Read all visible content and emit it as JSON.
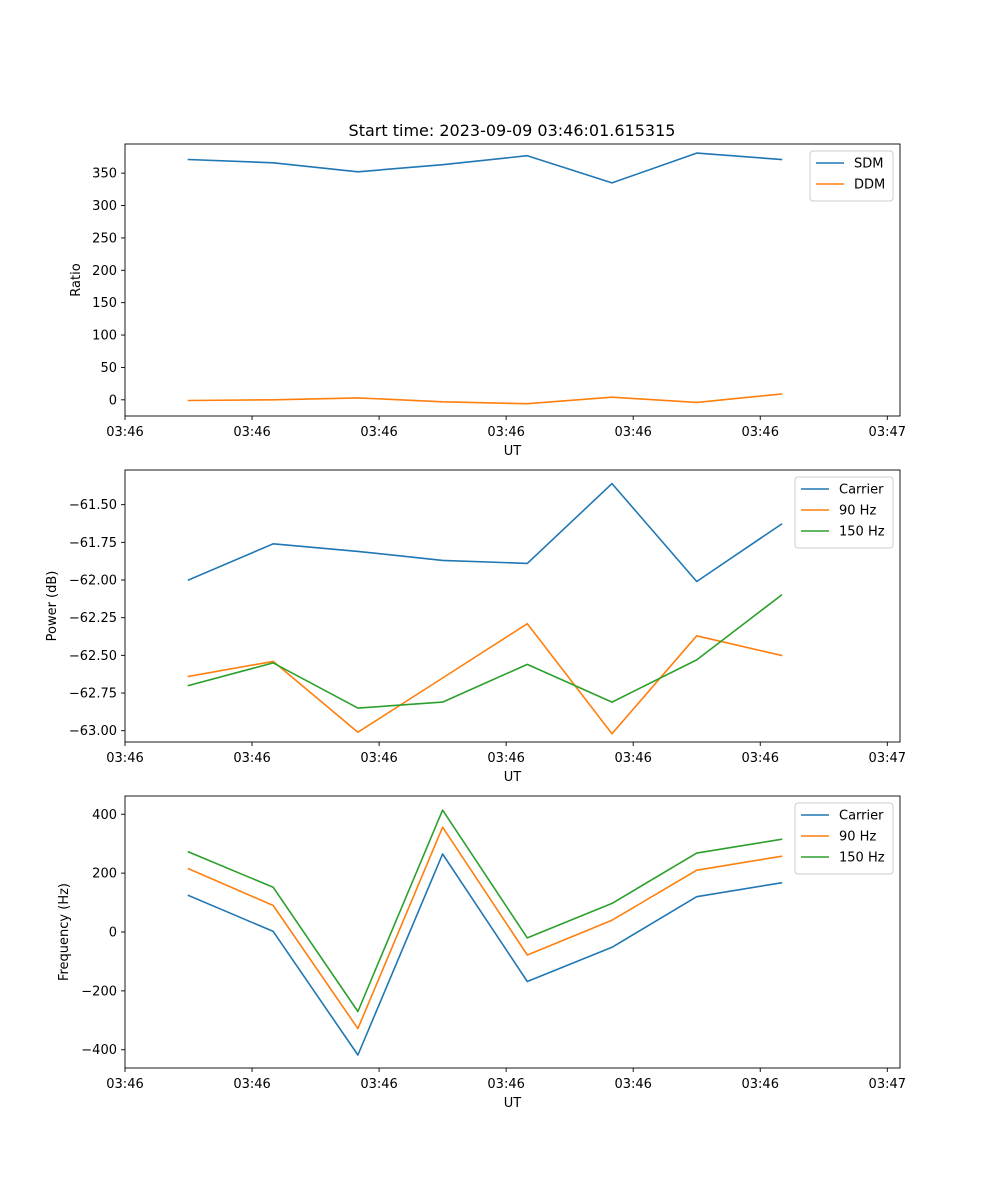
{
  "figure": {
    "title": "Start time: 2023-09-09 03:46:01.615315"
  },
  "chart_data": [
    {
      "type": "line",
      "title": "Start time: 2023-09-09 03:46:01.615315",
      "xlabel": "UT",
      "ylabel": "Ratio",
      "x": [
        0,
        1,
        2,
        3,
        4,
        5,
        6,
        7
      ],
      "xlim": [
        -0.75,
        8.4
      ],
      "xtick_positions": [
        -0.75,
        0.75,
        2.25,
        3.75,
        5.25,
        6.75,
        8.25
      ],
      "xtick_labels": [
        "03:46",
        "03:46",
        "03:46",
        "03:46",
        "03:46",
        "03:46",
        "03:47"
      ],
      "ylim": [
        -25,
        395
      ],
      "yticks": [
        0,
        50,
        100,
        150,
        200,
        250,
        300,
        350
      ],
      "legend": "top-right",
      "series": [
        {
          "name": "SDM",
          "color": "#1f77b4",
          "values": [
            371,
            366,
            352,
            363,
            377,
            335,
            381,
            371
          ]
        },
        {
          "name": "DDM",
          "color": "#ff7f0e",
          "values": [
            -1,
            0,
            3,
            -3,
            -6,
            4,
            -4,
            9
          ]
        }
      ]
    },
    {
      "type": "line",
      "title": "",
      "xlabel": "UT",
      "ylabel": "Power (dB)",
      "x": [
        0,
        1,
        2,
        3,
        4,
        5,
        6,
        7
      ],
      "xlim": [
        -0.75,
        8.4
      ],
      "xtick_positions": [
        -0.75,
        0.75,
        2.25,
        3.75,
        5.25,
        6.75,
        8.25
      ],
      "xtick_labels": [
        "03:46",
        "03:46",
        "03:46",
        "03:46",
        "03:46",
        "03:46",
        "03:47"
      ],
      "ylim": [
        -63.075,
        -61.27
      ],
      "yticks": [
        -63.0,
        -62.75,
        -62.5,
        -62.25,
        -62.0,
        -61.75,
        -61.5
      ],
      "ytick_labels": [
        "−63.00",
        "−62.75",
        "−62.50",
        "−62.25",
        "−62.00",
        "−61.75",
        "−61.50"
      ],
      "legend": "top-right",
      "series": [
        {
          "name": "Carrier",
          "color": "#1f77b4",
          "values": [
            -62.0,
            -61.76,
            -61.81,
            -61.87,
            -61.89,
            -61.36,
            -62.01,
            -61.63
          ]
        },
        {
          "name": "90 Hz",
          "color": "#ff7f0e",
          "values": [
            -62.64,
            -62.54,
            -63.01,
            -62.65,
            -62.29,
            -63.02,
            -62.37,
            -62.5
          ]
        },
        {
          "name": "150 Hz",
          "color": "#2ca02c",
          "values": [
            -62.7,
            -62.55,
            -62.85,
            -62.81,
            -62.56,
            -62.81,
            -62.53,
            -62.1
          ]
        }
      ]
    },
    {
      "type": "line",
      "title": "",
      "xlabel": "UT",
      "ylabel": "Frequency (Hz)",
      "x": [
        0,
        1,
        2,
        3,
        4,
        5,
        6,
        7
      ],
      "xlim": [
        -0.75,
        8.4
      ],
      "xtick_positions": [
        -0.75,
        0.75,
        2.25,
        3.75,
        5.25,
        6.75,
        8.25
      ],
      "xtick_labels": [
        "03:46",
        "03:46",
        "03:46",
        "03:46",
        "03:46",
        "03:46",
        "03:47"
      ],
      "ylim": [
        -462,
        462
      ],
      "yticks": [
        -400,
        -200,
        0,
        200,
        400
      ],
      "ytick_labels": [
        "−400",
        "−200",
        "0",
        "200",
        "400"
      ],
      "legend": "top-right",
      "series": [
        {
          "name": "Carrier",
          "color": "#1f77b4",
          "values": [
            124,
            2,
            -418,
            265,
            -168,
            -52,
            120,
            167
          ]
        },
        {
          "name": "90 Hz",
          "color": "#ff7f0e",
          "values": [
            215,
            90,
            -328,
            356,
            -78,
            40,
            210,
            257
          ]
        },
        {
          "name": "150 Hz",
          "color": "#2ca02c",
          "values": [
            272,
            152,
            -270,
            414,
            -20,
            97,
            268,
            315
          ]
        }
      ]
    }
  ]
}
